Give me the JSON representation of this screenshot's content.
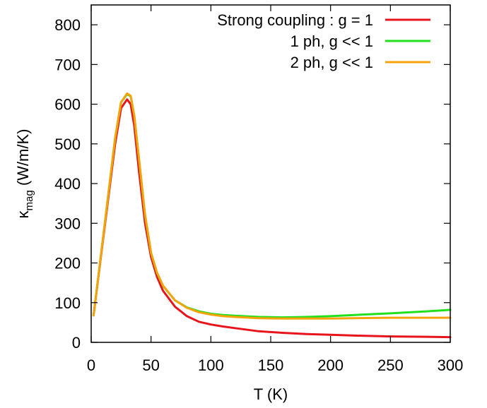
{
  "chart_data": {
    "type": "line",
    "xlabel": "T (K)",
    "ylabel_main": "κ",
    "ylabel_sub": "mag",
    "ylabel_unit": " (W/m/K)",
    "xlim": [
      0,
      300
    ],
    "ylim": [
      0,
      850
    ],
    "xticks": [
      0,
      50,
      100,
      150,
      200,
      250,
      300
    ],
    "yticks": [
      0,
      100,
      200,
      300,
      400,
      500,
      600,
      700,
      800
    ],
    "grid": false,
    "legend_position": "top-right",
    "series": [
      {
        "name": "Strong coupling : g = 1",
        "color": "#e8141c",
        "x": [
          2,
          10,
          20,
          25,
          30,
          33,
          36,
          40,
          45,
          50,
          55,
          60,
          70,
          80,
          90,
          100,
          110,
          120,
          140,
          160,
          180,
          200,
          220,
          250,
          280,
          300
        ],
        "y": [
          68,
          260,
          500,
          590,
          612,
          600,
          545,
          430,
          300,
          215,
          165,
          130,
          90,
          66,
          52,
          45,
          40,
          36,
          28,
          24,
          21,
          19,
          17,
          15,
          14,
          13
        ]
      },
      {
        "name": "1 ph, g << 1",
        "color": "#22e01c",
        "x": [
          2,
          10,
          20,
          25,
          30,
          33,
          36,
          40,
          45,
          50,
          55,
          60,
          70,
          80,
          90,
          100,
          110,
          120,
          140,
          160,
          180,
          200,
          220,
          250,
          280,
          300
        ],
        "y": [
          68,
          265,
          515,
          605,
          625,
          620,
          570,
          460,
          320,
          225,
          175,
          142,
          106,
          88,
          78,
          72,
          69,
          67,
          64,
          63,
          64,
          66,
          69,
          73,
          78,
          82
        ]
      },
      {
        "name": "2 ph, g << 1",
        "color": "#f5a30c",
        "x": [
          2,
          10,
          20,
          25,
          30,
          33,
          36,
          40,
          45,
          50,
          55,
          60,
          70,
          80,
          90,
          100,
          110,
          120,
          140,
          160,
          180,
          200,
          220,
          250,
          280,
          300
        ],
        "y": [
          68,
          265,
          515,
          605,
          627,
          621,
          571,
          462,
          322,
          226,
          176,
          143,
          106,
          87,
          76,
          70,
          66,
          64,
          61,
          60,
          60,
          60,
          61,
          62,
          62,
          62
        ]
      }
    ]
  }
}
